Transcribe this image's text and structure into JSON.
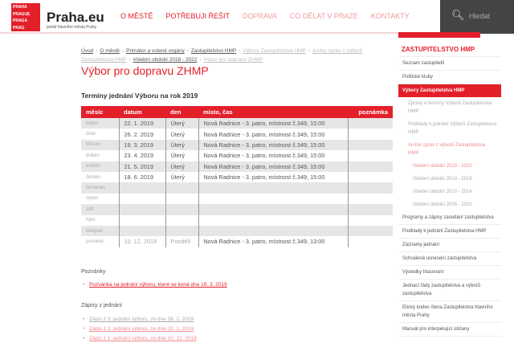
{
  "header": {
    "logo_text": [
      "PRAHA",
      "PRAGUE",
      "PRAGA",
      "PRAG"
    ],
    "brand": "Praha.eu",
    "tagline": "portál hlavního města Prahy",
    "nav": [
      "O MĚSTĚ",
      "POTŘEBUJI ŘEŠIT",
      "DOPRAVA",
      "CO DĚLAT V PRAZE",
      "KONTAKTY"
    ],
    "search_label": "Hledat"
  },
  "breadcrumb": [
    "Úvod",
    "O městě",
    "Primátor a volené orgány",
    "Zastupitelstvo HMP",
    "Výbory Zastupitelstva HMP",
    "Archiv zpráv z výborů Zastupitelstva HMP",
    "Volební období 2018 - 2022",
    "Výbor pro dopravu ZHMP"
  ],
  "page_title": "Výbor pro dopravu ZHMP",
  "table": {
    "title": "Termíny jednání Výboru na rok 2019",
    "headers": [
      "měsíc",
      "datum",
      "den",
      "místo, čas",
      "poznámka"
    ],
    "rows": [
      [
        "leden",
        "22. 1. 2019",
        "Úterý",
        "Nová Radnice - 3. patro, místnost č.349, 15:00",
        ""
      ],
      [
        "únor",
        "26. 2. 2019",
        "Úterý",
        "Nová Radnice - 3. patro, místnost č.349, 15:00",
        ""
      ],
      [
        "březen",
        "19. 3. 2019",
        "Úterý",
        "Nová Radnice - 3. patro, místnost č.349, 15:00",
        ""
      ],
      [
        "duben",
        "23. 4. 2019",
        "Úterý",
        "Nová Radnice - 3. patro, místnost č.349, 15:00",
        ""
      ],
      [
        "květen",
        "21. 5. 2019",
        "Úterý",
        "Nová Radnice - 3. patro, místnost č.349, 15:00",
        ""
      ],
      [
        "červen",
        "18. 6. 2019",
        "Úterý",
        "Nová Radnice - 3. patro, místnost č.349, 15:00",
        ""
      ],
      [
        "červenec",
        "",
        "",
        "",
        ""
      ],
      [
        "srpen",
        "",
        "",
        "",
        ""
      ],
      [
        "září",
        "",
        "",
        "",
        ""
      ],
      [
        "říjen",
        "",
        "",
        "",
        ""
      ],
      [
        "listopad",
        "",
        "",
        "",
        ""
      ],
      [
        "prosinec",
        "10. 12. 2018",
        "Pondělí",
        "Nová Radnice - 3. patro, místnost č.349, 13:00",
        ""
      ]
    ]
  },
  "invitations": {
    "title": "Pozvánky",
    "links": [
      "Pozvánka na jednání výboru, které se koná dne 19. 3. 2019"
    ]
  },
  "minutes": {
    "title": "Zápisy z jednání",
    "links": [
      "Zápis z 3. jednání výboru, ze dne 26. 2. 2019",
      "Zápis z 2. jednání výboru, ze dne 22. 1. 2019",
      "Zápis z 1. jednání výboru, ze dne 10. 12. 2018"
    ]
  },
  "sidebar": {
    "title": "ZASTUPITELSTVO HMP",
    "items": [
      {
        "label": "Seznam zastupitelů",
        "type": ""
      },
      {
        "label": "Politické kluby",
        "type": ""
      },
      {
        "label": "Výbory Zastupitelstva HMP",
        "type": "act"
      },
      {
        "label": "Zprávy a termíny Výborů Zastupitelstva HMP",
        "type": "sub"
      },
      {
        "label": "Podklady k jednání Výborů Zastupitelstva HMP",
        "type": "sub"
      },
      {
        "label": "Archiv zpráv z výborů Zastupitelstva HMP",
        "type": "sub red"
      },
      {
        "label": "Volební období 2018 - 2022",
        "type": "sub2 red"
      },
      {
        "label": "Volební období 2014 - 2018",
        "type": "sub2"
      },
      {
        "label": "Volební období 2010 - 2014",
        "type": "sub2"
      },
      {
        "label": "Volební období 2006 - 2010",
        "type": "sub2"
      },
      {
        "label": "Programy a zápisy zasedání zastupitelstva",
        "type": ""
      },
      {
        "label": "Podklady k jednání Zastupitelstva HMP",
        "type": ""
      },
      {
        "label": "Záznamy jednání",
        "type": ""
      },
      {
        "label": "Schválená usnesení zastupitelstva",
        "type": ""
      },
      {
        "label": "Výsledky hlasování",
        "type": ""
      },
      {
        "label": "Jednací řády zastupitelstva a výborů zastupitelstva",
        "type": ""
      },
      {
        "label": "Etický kodex člena Zastupitelstva hlavního města Prahy",
        "type": ""
      },
      {
        "label": "Manuál pro interpelující občany",
        "type": ""
      }
    ]
  },
  "colors": {
    "brand_red": "#e3202a",
    "search_bg": "#444444"
  }
}
